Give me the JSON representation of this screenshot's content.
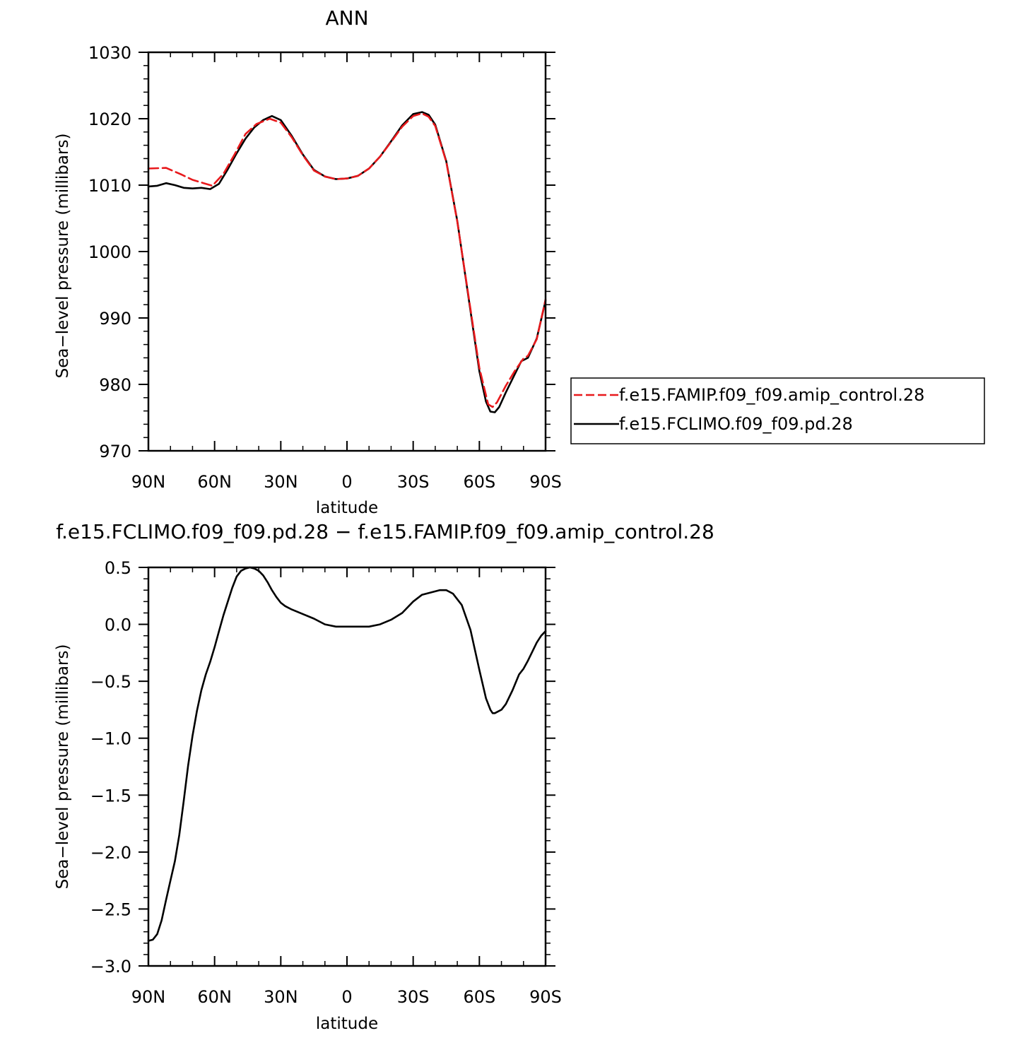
{
  "chart_data": [
    {
      "type": "line",
      "title": "ANN",
      "xlabel": "latitude",
      "ylabel": "Sea−level pressure (millibars)",
      "xlim": [
        90,
        -90
      ],
      "ylim": [
        970,
        1030
      ],
      "x_ticks": [
        90,
        60,
        30,
        0,
        -30,
        -60,
        -90
      ],
      "x_tick_labels": [
        "90N",
        "60N",
        "30N",
        "0",
        "30S",
        "60S",
        "90S"
      ],
      "y_ticks": [
        970,
        980,
        990,
        1000,
        1010,
        1020,
        1030
      ],
      "y_tick_labels": [
        "970",
        "980",
        "990",
        "1000",
        "1010",
        "1020",
        "1030"
      ],
      "legend_position": "right",
      "grid": false,
      "series": [
        {
          "name": "f.e15.FAMIP.f09_f09.amip_control.28",
          "color": "#e8191c",
          "dash": "dashed",
          "x": [
            90,
            82,
            75,
            70,
            65,
            61,
            56,
            51,
            46,
            41,
            35,
            30,
            25,
            20,
            15,
            10,
            5,
            0,
            -5,
            -10,
            -15,
            -20,
            -25,
            -30,
            -34,
            -37,
            -40,
            -45,
            -50,
            -55,
            -60,
            -64,
            -66,
            -68,
            -72,
            -76,
            -80,
            -82,
            -86,
            -90
          ],
          "y": [
            1012.5,
            1012.6,
            1011.6,
            1010.8,
            1010.3,
            1009.9,
            1011.7,
            1014.6,
            1017.7,
            1019.2,
            1020.0,
            1019.4,
            1017.2,
            1014.5,
            1012.2,
            1011.3,
            1010.9,
            1011.0,
            1011.4,
            1012.5,
            1014.3,
            1016.5,
            1018.8,
            1020.4,
            1020.8,
            1020.3,
            1018.9,
            1013.5,
            1004.5,
            993.5,
            982.5,
            977.0,
            976.6,
            977.3,
            979.8,
            982.0,
            983.9,
            984.3,
            986.8,
            992.8
          ]
        },
        {
          "name": "f.e15.FCLIMO.f09_f09.pd.28",
          "color": "#000000",
          "dash": "solid",
          "x": [
            90,
            86,
            82,
            78,
            74,
            70,
            66,
            62,
            58,
            54,
            50,
            46,
            42,
            38,
            34,
            30,
            25,
            20,
            15,
            10,
            5,
            0,
            -5,
            -10,
            -15,
            -20,
            -25,
            -30,
            -34,
            -37,
            -40,
            -45,
            -50,
            -55,
            -60,
            -63,
            -65,
            -67,
            -69,
            -72,
            -76,
            -79,
            -82,
            -86,
            -90
          ],
          "y": [
            1009.8,
            1009.9,
            1010.3,
            1010.0,
            1009.6,
            1009.5,
            1009.6,
            1009.4,
            1010.2,
            1012.4,
            1014.8,
            1017.0,
            1018.7,
            1019.8,
            1020.4,
            1019.8,
            1017.4,
            1014.6,
            1012.3,
            1011.3,
            1010.9,
            1011.0,
            1011.4,
            1012.5,
            1014.3,
            1016.6,
            1019.0,
            1020.7,
            1021.0,
            1020.6,
            1019.1,
            1013.6,
            1004.6,
            993.3,
            982.0,
            977.4,
            975.9,
            975.8,
            976.6,
            978.8,
            981.5,
            983.5,
            984.0,
            986.9,
            992.6
          ]
        }
      ]
    },
    {
      "type": "line",
      "title": "f.e15.FCLIMO.f09_f09.pd.28 − f.e15.FAMIP.f09_f09.amip_control.28",
      "xlabel": "latitude",
      "ylabel": "Sea−level pressure (millibars)",
      "xlim": [
        90,
        -90
      ],
      "ylim": [
        -3.0,
        0.5
      ],
      "x_ticks": [
        90,
        60,
        30,
        0,
        -30,
        -60,
        -90
      ],
      "x_tick_labels": [
        "90N",
        "60N",
        "30N",
        "0",
        "30S",
        "60S",
        "90S"
      ],
      "y_ticks": [
        -3.0,
        -2.5,
        -2.0,
        -1.5,
        -1.0,
        -0.5,
        0.0,
        0.5
      ],
      "y_tick_labels": [
        "−3.0",
        "−2.5",
        "−2.0",
        "−1.5",
        "−1.0",
        "−0.5",
        "0.0",
        "0.5"
      ],
      "grid": false,
      "series": [
        {
          "color": "#000000",
          "dash": "solid",
          "x": [
            90,
            88,
            86,
            84,
            82,
            80,
            78,
            76,
            74,
            72,
            70,
            68,
            66,
            64,
            62,
            60,
            58,
            56,
            54,
            52,
            50,
            48,
            46,
            44,
            42,
            40,
            38,
            36,
            34,
            32,
            30,
            28,
            25,
            20,
            15,
            10,
            5,
            0,
            -5,
            -10,
            -15,
            -20,
            -25,
            -30,
            -34,
            -38,
            -42,
            -45,
            -48,
            -52,
            -56,
            -60,
            -63,
            -65,
            -66,
            -67,
            -68,
            -70,
            -72,
            -75,
            -78,
            -80,
            -82,
            -84,
            -86,
            -88,
            -90
          ],
          "y": [
            -2.78,
            -2.77,
            -2.72,
            -2.6,
            -2.42,
            -2.25,
            -2.08,
            -1.85,
            -1.55,
            -1.24,
            -0.98,
            -0.76,
            -0.58,
            -0.44,
            -0.33,
            -0.2,
            -0.06,
            0.08,
            0.2,
            0.32,
            0.42,
            0.47,
            0.49,
            0.5,
            0.49,
            0.47,
            0.43,
            0.37,
            0.3,
            0.24,
            0.19,
            0.16,
            0.13,
            0.09,
            0.05,
            0.0,
            -0.02,
            -0.02,
            -0.02,
            -0.02,
            0.0,
            0.04,
            0.1,
            0.2,
            0.26,
            0.28,
            0.3,
            0.3,
            0.27,
            0.17,
            -0.05,
            -0.4,
            -0.65,
            -0.75,
            -0.78,
            -0.78,
            -0.77,
            -0.75,
            -0.7,
            -0.58,
            -0.44,
            -0.39,
            -0.32,
            -0.24,
            -0.16,
            -0.1,
            -0.06
          ]
        }
      ]
    }
  ]
}
